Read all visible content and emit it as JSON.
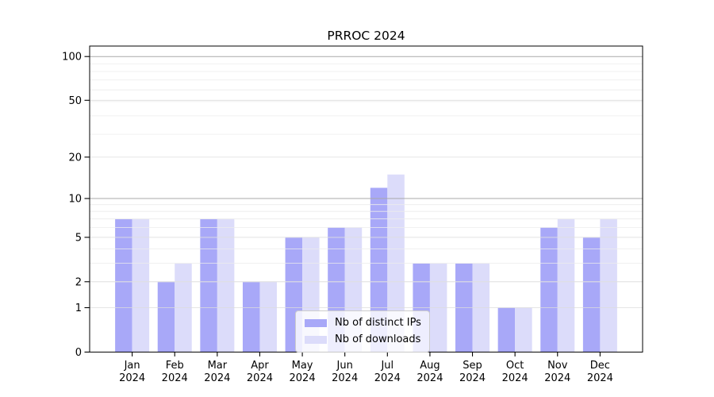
{
  "title": "PRROC 2024",
  "chart_data": {
    "type": "bar",
    "title": "PRROC 2024",
    "categories": [
      "Jan",
      "Feb",
      "Mar",
      "Apr",
      "May",
      "Jun",
      "Jul",
      "Aug",
      "Sep",
      "Oct",
      "Nov",
      "Dec"
    ],
    "category_year": "2024",
    "series": [
      {
        "name": "Nb of distinct IPs",
        "color": "#a8a8f8",
        "values": [
          7,
          2,
          7,
          2,
          5,
          6,
          12,
          3,
          3,
          1,
          6,
          5
        ]
      },
      {
        "name": "Nb of downloads",
        "color": "#dcdcfa",
        "values": [
          7,
          3,
          7,
          2,
          5,
          6,
          15,
          3,
          3,
          1,
          7,
          7
        ]
      }
    ],
    "yscale": "log1p",
    "yticks": [
      0,
      1,
      2,
      5,
      10,
      20,
      50,
      100
    ],
    "ylim": [
      0,
      116
    ],
    "xlabel": "",
    "ylabel": "",
    "grid": true,
    "legend_position": "lower-center",
    "background": "#ffffff"
  },
  "style": {
    "grid_minor_color": "#ececec",
    "grid_major_color": "#dddddd",
    "grid_decade_color": "#a9a9a9",
    "grid_decade_ticks": [
      10,
      100
    ],
    "grid_minor_log1p_positions": [
      3,
      4,
      5,
      6,
      7,
      8,
      9,
      10,
      30,
      40,
      50,
      60,
      70,
      80,
      90
    ],
    "axis_color": "#000000",
    "legend_border_color": "#cccccc"
  }
}
